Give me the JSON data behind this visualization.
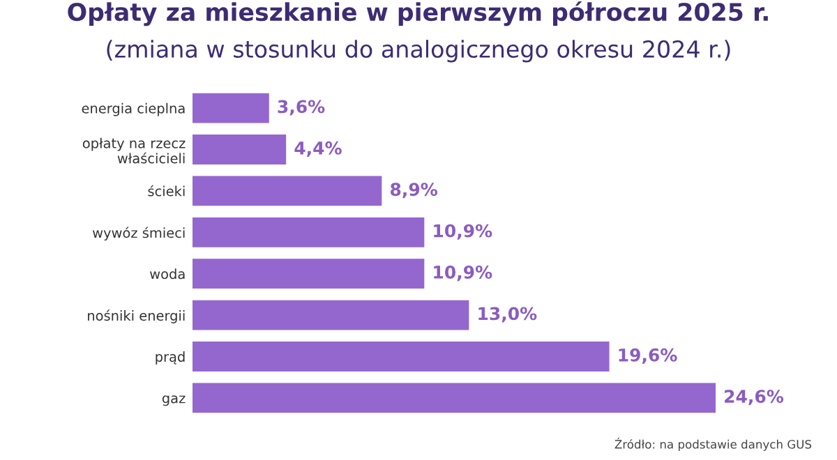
{
  "chart_data": {
    "type": "bar",
    "orientation": "horizontal",
    "title": "Opłaty za mieszkanie w pierwszym półroczu 2025 r.",
    "subtitle": "(zmiana w stosunku do analogicznego okresu 2024 r.)",
    "categories": [
      "energia cieplna",
      "opłaty na rzecz\nwłaścicieli",
      "ścieki",
      "wywóz śmieci",
      "woda",
      "nośniki energii",
      "prąd",
      "gaz"
    ],
    "values": [
      3.6,
      4.4,
      8.9,
      10.9,
      10.9,
      13.0,
      19.6,
      24.6
    ],
    "value_labels": [
      "3,6%",
      "4,4%",
      "8,9%",
      "10,9%",
      "10,9%",
      "13,0%",
      "19,6%",
      "24,6%"
    ],
    "color": "#9467cf",
    "annotations": [
      "Źródło: na podstawie danych GUS"
    ]
  }
}
